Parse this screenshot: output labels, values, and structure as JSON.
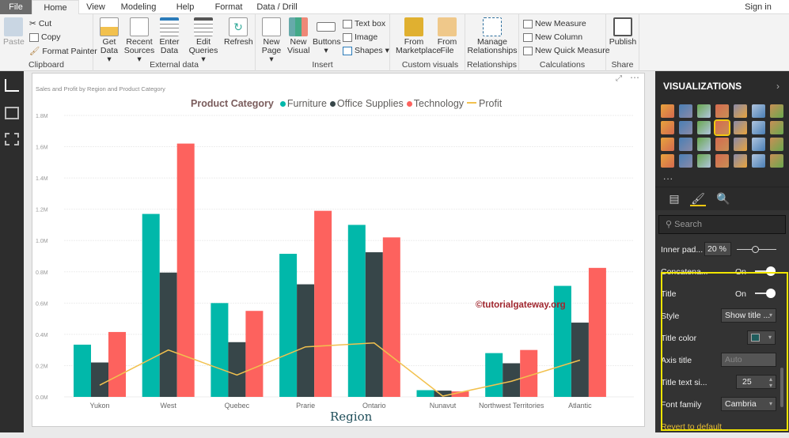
{
  "tabs": {
    "file": "File",
    "home": "Home",
    "view": "View",
    "modeling": "Modeling",
    "help": "Help",
    "format": "Format",
    "data_drill": "Data / Drill",
    "sign_in": "Sign in"
  },
  "ribbon": {
    "clipboard": {
      "label": "Clipboard",
      "paste": "Paste",
      "cut": "Cut",
      "copy": "Copy",
      "format_painter": "Format Painter"
    },
    "external": {
      "label": "External data",
      "get_data": "Get Data",
      "recent_sources": "Recent Sources",
      "enter_data": "Enter Data",
      "edit_queries": "Edit Queries",
      "refresh": "Refresh"
    },
    "insert": {
      "label": "Insert",
      "new_page": "New Page",
      "new_visual": "New Visual",
      "buttons": "Buttons",
      "text_box": "Text box",
      "image": "Image",
      "shapes": "Shapes"
    },
    "custom": {
      "label": "Custom visuals",
      "from_marketplace": "From Marketplace",
      "from_file": "From File"
    },
    "relationships": {
      "label": "Relationships",
      "manage": "Manage Relationships"
    },
    "calculations": {
      "label": "Calculations",
      "new_measure": "New Measure",
      "new_column": "New Column",
      "new_quick_measure": "New Quick Measure"
    },
    "share": {
      "label": "Share",
      "publish": "Publish"
    }
  },
  "watermark": "©tutorialgateway.org",
  "chart_data": {
    "type": "bar",
    "title": "Sales and Profit by Region and Product Category",
    "legend_title": "Product Category",
    "legend_position": "top",
    "xlabel": "Region",
    "ylabel": "",
    "ylim": [
      0,
      1800000
    ],
    "yticks": [
      "0.0M",
      "0.2M",
      "0.4M",
      "0.6M",
      "0.8M",
      "1.0M",
      "1.2M",
      "1.4M",
      "1.6M",
      "1.8M"
    ],
    "grid": true,
    "categories": [
      "Yukon",
      "West",
      "Quebec",
      "Prarie",
      "Ontario",
      "Nunavut",
      "Northwest Territories",
      "Atlantic"
    ],
    "series": [
      {
        "name": "Furniture",
        "kind": "bar",
        "color": "#01b8aa",
        "values": [
          334000,
          1170000,
          600000,
          915000,
          1100000,
          43000,
          280000,
          710000
        ]
      },
      {
        "name": "Office Supplies",
        "kind": "bar",
        "color": "#374649",
        "values": [
          220000,
          795000,
          350000,
          720000,
          925000,
          40000,
          215000,
          475000
        ]
      },
      {
        "name": "Technology",
        "kind": "bar",
        "color": "#fd625e",
        "values": [
          415000,
          1620000,
          550000,
          1190000,
          1020000,
          35000,
          300000,
          825000
        ]
      },
      {
        "name": "Profit",
        "kind": "line",
        "color": "#f2c14e",
        "values": [
          75000,
          300000,
          140000,
          320000,
          345000,
          5000,
          100000,
          235000
        ]
      }
    ]
  },
  "panel": {
    "title": "VISUALIZATIONS",
    "more": "...",
    "search_placeholder": "Search",
    "inner_padding": {
      "label": "Inner pad...",
      "value": "20",
      "unit": "%",
      "slider_percent": 20
    },
    "concatenate": {
      "label": "Concatena...",
      "state": "On"
    },
    "title_toggle": {
      "label": "Title",
      "state": "On"
    },
    "style": {
      "label": "Style",
      "value": "Show title ..."
    },
    "title_color": {
      "label": "Title color",
      "value": "#1f5c5c"
    },
    "axis_title": {
      "label": "Axis title",
      "placeholder": "Auto"
    },
    "title_text_size": {
      "label": "Title text si...",
      "value": "25"
    },
    "font_family": {
      "label": "Font family",
      "value": "Cambria"
    },
    "revert": "Revert to default"
  }
}
